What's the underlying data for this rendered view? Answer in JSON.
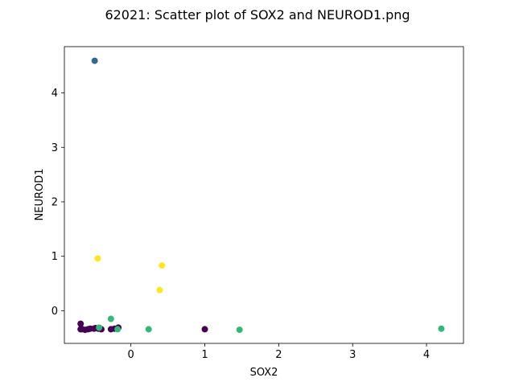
{
  "chart_data": {
    "type": "scatter",
    "title": "62021: Scatter plot of SOX2 and NEUROD1.png",
    "xlabel": "SOX2",
    "ylabel": "NEUROD1",
    "xlim": [
      -0.9,
      4.5
    ],
    "ylim": [
      -0.6,
      4.85
    ],
    "x_ticks": [
      0,
      1,
      2,
      3,
      4
    ],
    "y_ticks": [
      0,
      1,
      2,
      3,
      4
    ],
    "grid": false,
    "legend": "none",
    "colors": {
      "purple": "#440154",
      "blue": "#31688e",
      "green": "#35b779",
      "yellow": "#fde725"
    },
    "points": [
      {
        "x": -0.68,
        "y": -0.24,
        "color": "purple"
      },
      {
        "x": -0.68,
        "y": -0.34,
        "color": "purple"
      },
      {
        "x": -0.66,
        "y": -0.34,
        "color": "purple"
      },
      {
        "x": -0.62,
        "y": -0.35,
        "color": "purple"
      },
      {
        "x": -0.58,
        "y": -0.34,
        "color": "purple"
      },
      {
        "x": -0.55,
        "y": -0.33,
        "color": "purple"
      },
      {
        "x": -0.5,
        "y": -0.33,
        "color": "purple"
      },
      {
        "x": -0.48,
        "y": -0.32,
        "color": "purple"
      },
      {
        "x": -0.44,
        "y": -0.33,
        "color": "purple"
      },
      {
        "x": -0.4,
        "y": -0.34,
        "color": "purple"
      },
      {
        "x": -0.27,
        "y": -0.34,
        "color": "purple"
      },
      {
        "x": -0.22,
        "y": -0.33,
        "color": "purple"
      },
      {
        "x": -0.17,
        "y": -0.31,
        "color": "purple"
      },
      {
        "x": 1.0,
        "y": -0.34,
        "color": "purple"
      },
      {
        "x": -0.49,
        "y": 4.59,
        "color": "blue"
      },
      {
        "x": -0.27,
        "y": -0.15,
        "color": "green"
      },
      {
        "x": -0.43,
        "y": -0.31,
        "color": "green"
      },
      {
        "x": -0.18,
        "y": -0.34,
        "color": "green"
      },
      {
        "x": 0.24,
        "y": -0.34,
        "color": "green"
      },
      {
        "x": 1.47,
        "y": -0.35,
        "color": "green"
      },
      {
        "x": 4.2,
        "y": -0.33,
        "color": "green"
      },
      {
        "x": -0.45,
        "y": 0.96,
        "color": "yellow"
      },
      {
        "x": 0.42,
        "y": 0.83,
        "color": "yellow"
      },
      {
        "x": 0.39,
        "y": 0.38,
        "color": "yellow"
      }
    ]
  }
}
